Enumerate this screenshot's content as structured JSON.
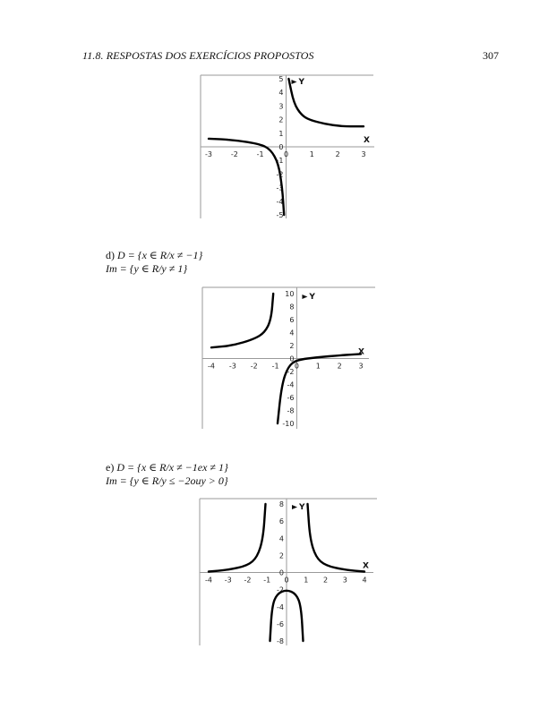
{
  "header": {
    "section": "11.8.  RESPOSTAS DOS EXERCÍCIOS PROPOSTOS",
    "page_number": "307"
  },
  "items": {
    "d": {
      "label": "d) ",
      "domain": "D = {x ∈ R/x ≠ −1}",
      "image": "Im = {y ∈ R/y ≠ 1}"
    },
    "e": {
      "label": "e) ",
      "domain": "D = {x ∈ R/x ≠ −1ex ≠ 1}",
      "image": "Im = {y ∈ R/y ≤ −2ouy > 0}"
    }
  },
  "chart_data": [
    {
      "type": "line",
      "title": "",
      "xlabel": "X",
      "ylabel": "Y",
      "xlim": [
        -3,
        3
      ],
      "ylim": [
        -5,
        5
      ],
      "x_ticks": [
        "-3",
        "-2",
        "-1",
        "0",
        "1",
        "2",
        "3"
      ],
      "y_ticks": [
        "5",
        "4",
        "3",
        "2",
        "1",
        "0",
        "-1",
        "-2",
        "-3",
        "-4",
        "-5"
      ],
      "vertical_asymptote": 0,
      "horizontal_asymptote": 1.5,
      "series": [
        {
          "name": "left branch",
          "points": [
            [
              -3,
              0.6
            ],
            [
              -2,
              0.5
            ],
            [
              -1,
              0.2
            ],
            [
              -0.6,
              -0.2
            ],
            [
              -0.3,
              -1.2
            ],
            [
              -0.15,
              -3
            ],
            [
              -0.08,
              -5
            ]
          ]
        },
        {
          "name": "right branch",
          "points": [
            [
              0.1,
              5
            ],
            [
              0.3,
              3.2
            ],
            [
              0.6,
              2.3
            ],
            [
              1,
              1.9
            ],
            [
              2,
              1.5
            ],
            [
              3,
              1.5
            ]
          ]
        }
      ]
    },
    {
      "type": "line",
      "title": "",
      "xlabel": "X",
      "ylabel": "Y",
      "xlim": [
        -4,
        3
      ],
      "ylim": [
        -10,
        10
      ],
      "x_ticks": [
        "-4",
        "-3",
        "-2",
        "-1",
        "0",
        "1",
        "2",
        "3"
      ],
      "y_ticks": [
        "10",
        "8",
        "6",
        "4",
        "2",
        "0",
        "-2",
        "-4",
        "-6",
        "-8",
        "-10"
      ],
      "vertical_asymptote": -1,
      "horizontal_asymptote": 1,
      "series": [
        {
          "name": "left branch",
          "points": [
            [
              -4,
              1.7
            ],
            [
              -3,
              2
            ],
            [
              -2,
              3
            ],
            [
              -1.5,
              4
            ],
            [
              -1.2,
              6
            ],
            [
              -1.1,
              10
            ]
          ]
        },
        {
          "name": "right branch",
          "points": [
            [
              -0.9,
              -10
            ],
            [
              -0.7,
              -4
            ],
            [
              -0.4,
              -1.2
            ],
            [
              0,
              -0.2
            ],
            [
              1,
              0.2
            ],
            [
              2,
              0.5
            ],
            [
              3,
              0.7
            ]
          ]
        }
      ]
    },
    {
      "type": "line",
      "title": "",
      "xlabel": "X",
      "ylabel": "Y",
      "xlim": [
        -4,
        4
      ],
      "ylim": [
        -8,
        8
      ],
      "x_ticks": [
        "-4",
        "-3",
        "-2",
        "-1",
        "0",
        "1",
        "2",
        "3",
        "4"
      ],
      "y_ticks": [
        "8",
        "6",
        "4",
        "2",
        "0",
        "-2",
        "-4",
        "-6",
        "-8"
      ],
      "vertical_asymptotes": [
        -1,
        1
      ],
      "horizontal_asymptote": 0,
      "series": [
        {
          "name": "left branch",
          "points": [
            [
              -4,
              0.1
            ],
            [
              -3,
              0.3
            ],
            [
              -2,
              0.8
            ],
            [
              -1.5,
              1.8
            ],
            [
              -1.2,
              4
            ],
            [
              -1.08,
              8
            ]
          ]
        },
        {
          "name": "middle branch",
          "points": [
            [
              -0.85,
              -8
            ],
            [
              -0.75,
              -4
            ],
            [
              -0.5,
              -2.5
            ],
            [
              0,
              -2
            ],
            [
              0.5,
              -2.5
            ],
            [
              0.75,
              -4
            ],
            [
              0.85,
              -8
            ]
          ]
        },
        {
          "name": "right branch",
          "points": [
            [
              1.08,
              8
            ],
            [
              1.2,
              4
            ],
            [
              1.5,
              1.8
            ],
            [
              2,
              0.8
            ],
            [
              3,
              0.3
            ],
            [
              4,
              0.1
            ]
          ]
        }
      ]
    }
  ]
}
